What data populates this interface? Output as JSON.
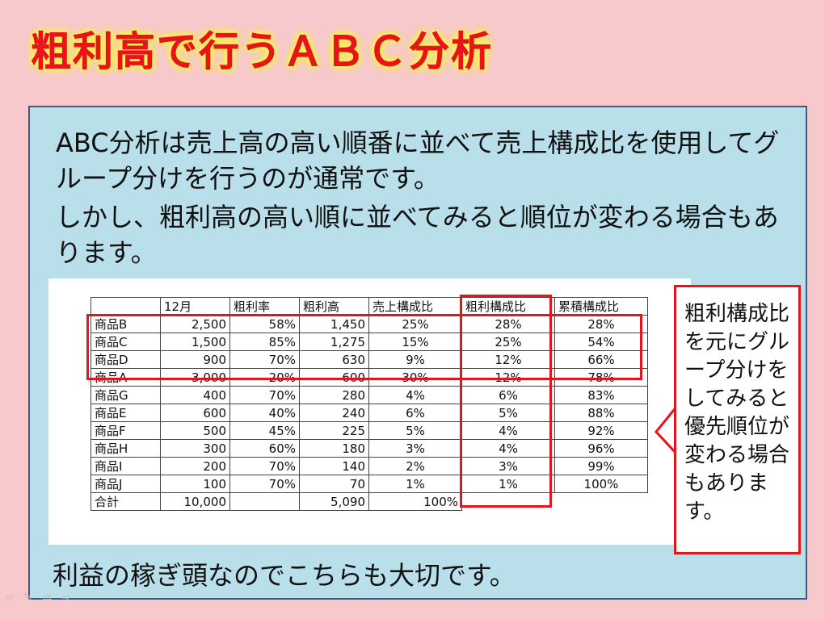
{
  "slide": {
    "title": "粗利高で行うＡＢＣ分析",
    "intro_line1": "ABC分析は売上高の高い順番に並べて売上構成比を使用してグループ分けを行うのが通常です。",
    "intro_line2": "しかし、粗利高の高い順に並べてみると順位が変わる場合もあります。",
    "closing": "利益の稼ぎ頭なのでこちらも大切です。",
    "callout": "粗利構成比を元にグループ分けをしてみると優先順位が変わる場合もあります。"
  },
  "table": {
    "headers": [
      "",
      "12月",
      "粗利率",
      "粗利高",
      "売上構成比",
      "粗利構成比",
      "累積構成比"
    ],
    "rows": [
      {
        "name": "商品B",
        "sales": "2,500",
        "margin_rate": "58%",
        "gross_profit": "1,450",
        "sales_ratio": "25%",
        "profit_ratio": "28%",
        "cumulative": "28%"
      },
      {
        "name": "商品C",
        "sales": "1,500",
        "margin_rate": "85%",
        "gross_profit": "1,275",
        "sales_ratio": "15%",
        "profit_ratio": "25%",
        "cumulative": "54%"
      },
      {
        "name": "商品D",
        "sales": "900",
        "margin_rate": "70%",
        "gross_profit": "630",
        "sales_ratio": "9%",
        "profit_ratio": "12%",
        "cumulative": "66%"
      },
      {
        "name": "商品A",
        "sales": "3,000",
        "margin_rate": "20%",
        "gross_profit": "600",
        "sales_ratio": "30%",
        "profit_ratio": "12%",
        "cumulative": "78%"
      },
      {
        "name": "商品G",
        "sales": "400",
        "margin_rate": "70%",
        "gross_profit": "280",
        "sales_ratio": "4%",
        "profit_ratio": "6%",
        "cumulative": "83%"
      },
      {
        "name": "商品E",
        "sales": "600",
        "margin_rate": "40%",
        "gross_profit": "240",
        "sales_ratio": "6%",
        "profit_ratio": "5%",
        "cumulative": "88%"
      },
      {
        "name": "商品F",
        "sales": "500",
        "margin_rate": "45%",
        "gross_profit": "225",
        "sales_ratio": "5%",
        "profit_ratio": "4%",
        "cumulative": "92%"
      },
      {
        "name": "商品H",
        "sales": "300",
        "margin_rate": "60%",
        "gross_profit": "180",
        "sales_ratio": "3%",
        "profit_ratio": "4%",
        "cumulative": "96%"
      },
      {
        "name": "商品I",
        "sales": "200",
        "margin_rate": "70%",
        "gross_profit": "140",
        "sales_ratio": "2%",
        "profit_ratio": "3%",
        "cumulative": "99%"
      },
      {
        "name": "商品J",
        "sales": "100",
        "margin_rate": "70%",
        "gross_profit": "70",
        "sales_ratio": "1%",
        "profit_ratio": "1%",
        "cumulative": "100%"
      }
    ],
    "total": {
      "name": "合計",
      "sales": "10,000",
      "gross_profit": "5,090",
      "sales_ratio": "100%"
    }
  },
  "colors": {
    "background": "#f7c9cc",
    "panel": "#b9dfeb",
    "title": "#e8141b",
    "highlight": "#e6141b"
  },
  "nav": {
    "icons": [
      "prev-arrow-icon",
      "pen-icon",
      "menu-icon",
      "next-arrow-icon"
    ]
  }
}
